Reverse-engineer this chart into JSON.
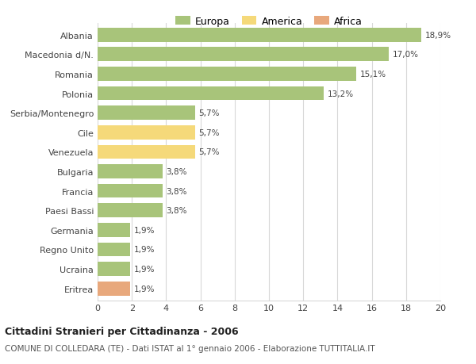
{
  "categories": [
    "Albania",
    "Macedonia d/N.",
    "Romania",
    "Polonia",
    "Serbia/Montenegro",
    "Cile",
    "Venezuela",
    "Bulgaria",
    "Francia",
    "Paesi Bassi",
    "Germania",
    "Regno Unito",
    "Ucraina",
    "Eritrea"
  ],
  "values": [
    18.9,
    17.0,
    15.1,
    13.2,
    5.7,
    5.7,
    5.7,
    3.8,
    3.8,
    3.8,
    1.9,
    1.9,
    1.9,
    1.9
  ],
  "labels": [
    "18,9%",
    "17,0%",
    "15,1%",
    "13,2%",
    "5,7%",
    "5,7%",
    "5,7%",
    "3,8%",
    "3,8%",
    "3,8%",
    "1,9%",
    "1,9%",
    "1,9%",
    "1,9%"
  ],
  "colors": [
    "#a8c47a",
    "#a8c47a",
    "#a8c47a",
    "#a8c47a",
    "#a8c47a",
    "#f5d97a",
    "#f5d97a",
    "#a8c47a",
    "#a8c47a",
    "#a8c47a",
    "#a8c47a",
    "#a8c47a",
    "#a8c47a",
    "#e8a87c"
  ],
  "continent": [
    "Europa",
    "Europa",
    "Europa",
    "Europa",
    "Europa",
    "America",
    "America",
    "Europa",
    "Europa",
    "Europa",
    "Europa",
    "Europa",
    "Europa",
    "Africa"
  ],
  "legend_labels": [
    "Europa",
    "America",
    "Africa"
  ],
  "legend_colors": [
    "#a8c47a",
    "#f5d97a",
    "#e8a87c"
  ],
  "title": "Cittadini Stranieri per Cittadinanza - 2006",
  "subtitle": "COMUNE DI COLLEDARA (TE) - Dati ISTAT al 1° gennaio 2006 - Elaborazione TUTTITALIA.IT",
  "xlim": [
    0,
    20
  ],
  "xticks": [
    0,
    2,
    4,
    6,
    8,
    10,
    12,
    14,
    16,
    18,
    20
  ],
  "background_color": "#ffffff",
  "grid_color": "#d8d8d8",
  "bar_height": 0.72
}
